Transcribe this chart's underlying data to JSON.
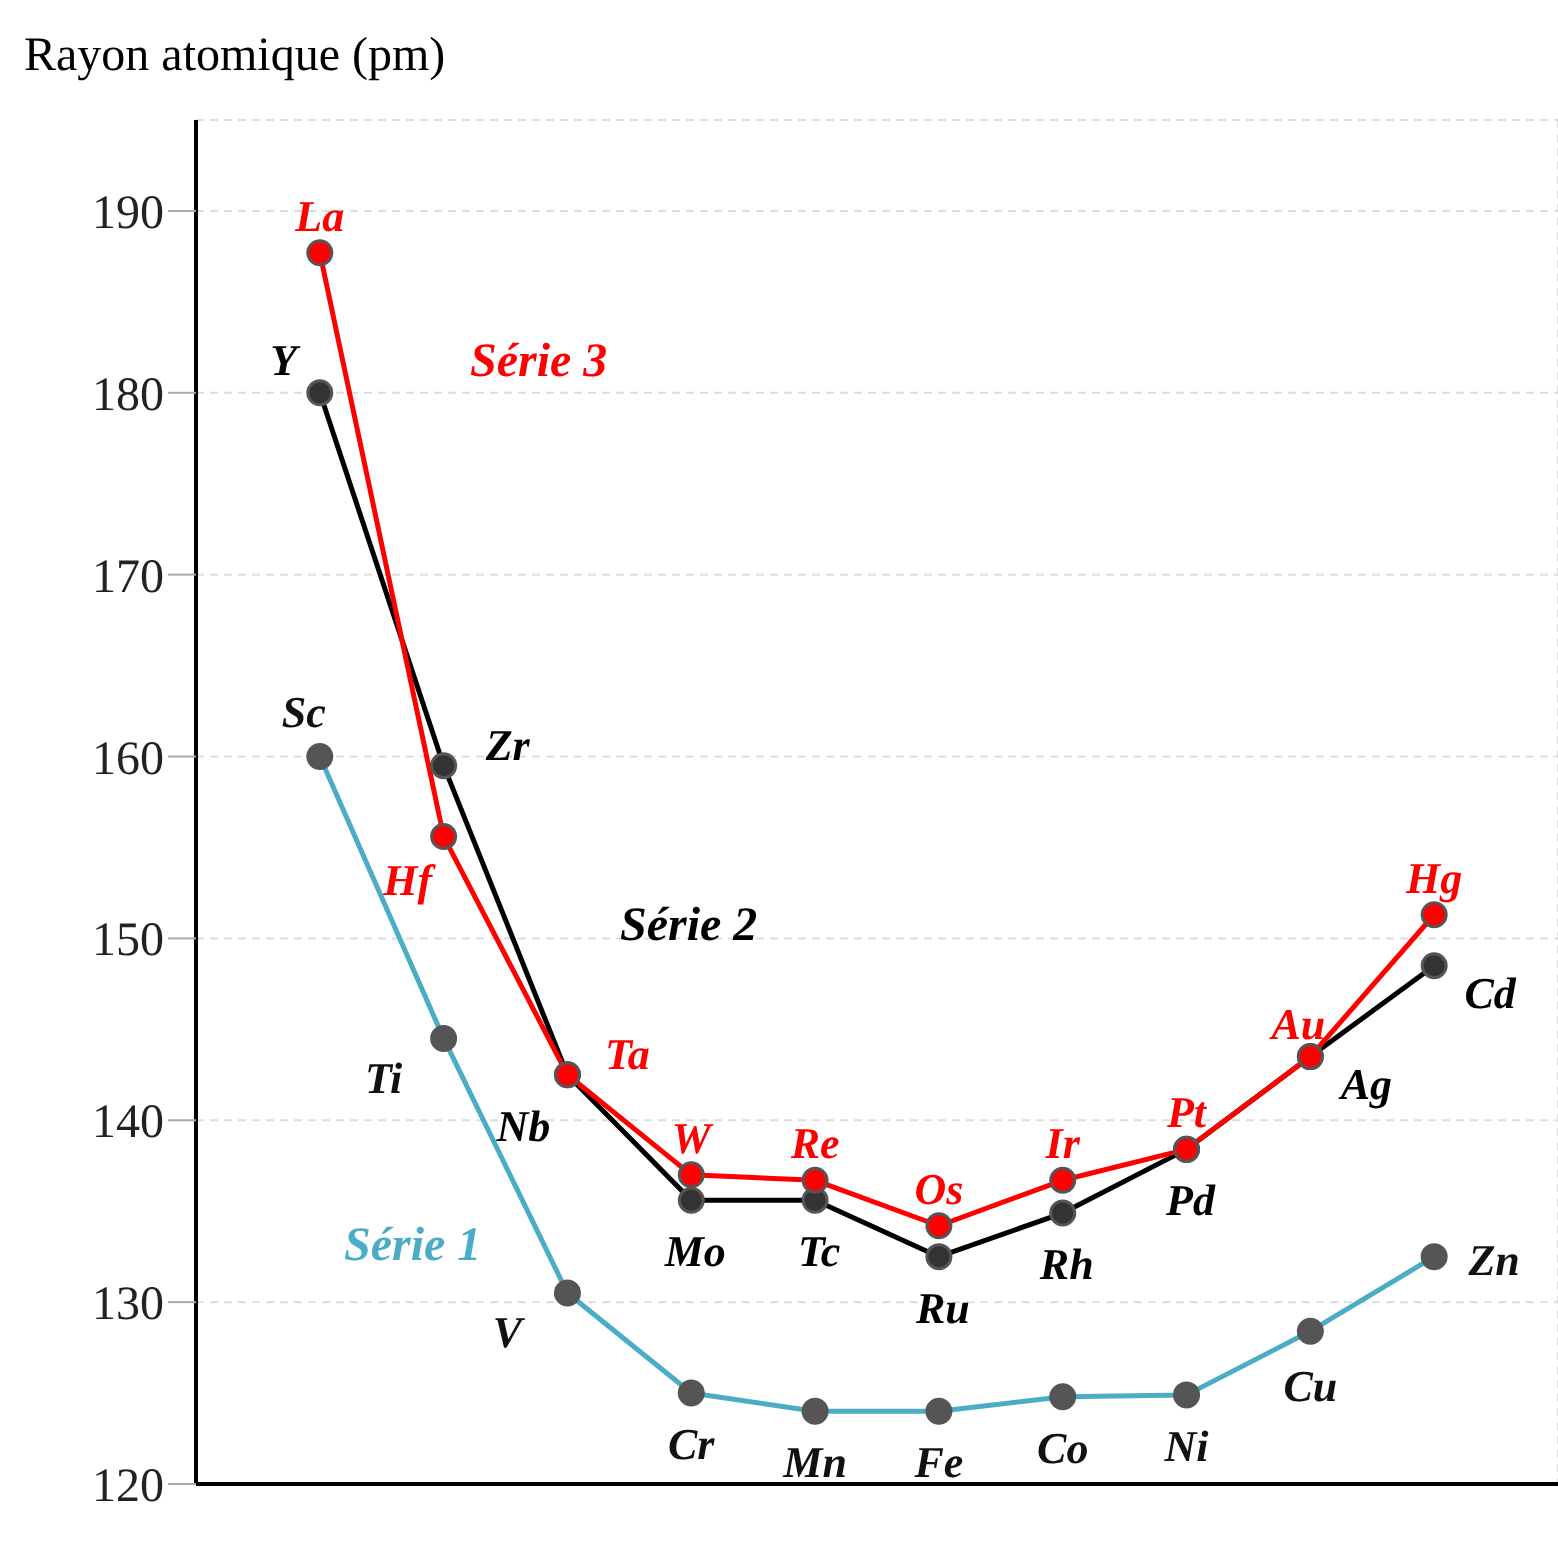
{
  "chart_data": {
    "type": "line",
    "ylabel": "Rayon atomique (pm)",
    "categories": [
      null,
      null,
      null,
      null,
      null,
      null,
      null,
      null,
      null,
      null
    ],
    "ylim": [
      120,
      195
    ],
    "yticks": [
      120,
      130,
      140,
      150,
      160,
      170,
      180,
      190
    ],
    "grid": true,
    "marker": "circle",
    "line_style": "solid",
    "series": [
      {
        "name": "Série 1",
        "color": "#4bacc6",
        "values": [
          160,
          144.5,
          130.5,
          125,
          124,
          124,
          124.8,
          124.9,
          128.4,
          132.5
        ],
        "value_labels": [
          "Sc",
          "Ti",
          "V",
          "Cr",
          "Mn",
          "Fe",
          "Co",
          "Ni",
          "Cu",
          "Zn"
        ]
      },
      {
        "name": "Série 2",
        "color": "#000000",
        "values": [
          180,
          159.5,
          142.5,
          135.6,
          135.6,
          132.5,
          134.9,
          138.4,
          143.5,
          148.5
        ],
        "value_labels": [
          "Y",
          "Zr",
          "Nb",
          "Mo",
          "Tc",
          "Ru",
          "Rh",
          "Pd",
          "Ag",
          "Cd"
        ]
      },
      {
        "name": "Série 3",
        "color": "#ff0000",
        "values": [
          187.7,
          155.6,
          142.5,
          137,
          136.7,
          134.2,
          136.7,
          138.4,
          143.5,
          151.3
        ],
        "value_labels": [
          "La",
          "Hf",
          "Ta",
          "W",
          "Re",
          "Os",
          "Ir",
          "Pt",
          "Au",
          "Hg"
        ]
      }
    ]
  }
}
